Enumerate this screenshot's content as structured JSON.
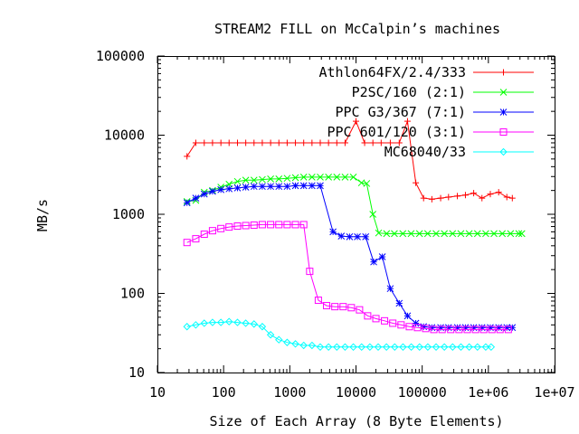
{
  "chart_data": {
    "type": "line",
    "title": "STREAM2 FILL on McCalpin’s machines",
    "xlabel": "Size of Each Array (8 Byte Elements)",
    "ylabel": "MB/s",
    "xscale": "log",
    "yscale": "log",
    "xlim": [
      10,
      10000000
    ],
    "ylim": [
      10,
      100000
    ],
    "xticks": [
      {
        "value": 10,
        "label": "10"
      },
      {
        "value": 100,
        "label": "100"
      },
      {
        "value": 1000,
        "label": "1000"
      },
      {
        "value": 10000,
        "label": "10000"
      },
      {
        "value": 100000,
        "label": "100000"
      },
      {
        "value": 1000000,
        "label": "1e+06"
      },
      {
        "value": 10000000,
        "label": "1e+07"
      }
    ],
    "yticks": [
      {
        "value": 10,
        "label": "10"
      },
      {
        "value": 100,
        "label": "100"
      },
      {
        "value": 1000,
        "label": "1000"
      },
      {
        "value": 10000,
        "label": "10000"
      },
      {
        "value": 100000,
        "label": "100000"
      }
    ],
    "grid": false,
    "legend_position": "top-right",
    "series": [
      {
        "name": "Athlon64FX/2.4/333",
        "color": "#ff0000",
        "marker": "plus",
        "points": [
          [
            28,
            5400
          ],
          [
            38,
            8000
          ],
          [
            51,
            8000
          ],
          [
            68,
            8000
          ],
          [
            91,
            8000
          ],
          [
            121,
            8000
          ],
          [
            162,
            8000
          ],
          [
            216,
            8000
          ],
          [
            288,
            8000
          ],
          [
            384,
            8000
          ],
          [
            513,
            8000
          ],
          [
            684,
            8000
          ],
          [
            912,
            8000
          ],
          [
            1216,
            8000
          ],
          [
            1622,
            8000
          ],
          [
            2163,
            8000
          ],
          [
            2885,
            8000
          ],
          [
            3847,
            8000
          ],
          [
            5130,
            8000
          ],
          [
            6840,
            8000
          ],
          [
            10000,
            15000
          ],
          [
            13500,
            8000
          ],
          [
            18000,
            8000
          ],
          [
            24000,
            8000
          ],
          [
            33000,
            8000
          ],
          [
            45000,
            8000
          ],
          [
            60000,
            15000
          ],
          [
            80000,
            2500
          ],
          [
            105000,
            1600
          ],
          [
            140000,
            1550
          ],
          [
            190000,
            1600
          ],
          [
            250000,
            1650
          ],
          [
            340000,
            1700
          ],
          [
            450000,
            1750
          ],
          [
            600000,
            1850
          ],
          [
            800000,
            1600
          ],
          [
            1070000,
            1800
          ],
          [
            1430000,
            1900
          ],
          [
            1900000,
            1650
          ],
          [
            2300000,
            1600
          ]
        ]
      },
      {
        "name": "P2SC/160 (2:1)",
        "color": "#00ff00",
        "marker": "cross",
        "points": [
          [
            28,
            1450
          ],
          [
            38,
            1500
          ],
          [
            51,
            1900
          ],
          [
            68,
            2000
          ],
          [
            91,
            2200
          ],
          [
            121,
            2400
          ],
          [
            162,
            2600
          ],
          [
            216,
            2700
          ],
          [
            288,
            2700
          ],
          [
            384,
            2750
          ],
          [
            513,
            2800
          ],
          [
            684,
            2800
          ],
          [
            912,
            2850
          ],
          [
            1216,
            2900
          ],
          [
            1622,
            2950
          ],
          [
            2163,
            2950
          ],
          [
            2885,
            2950
          ],
          [
            3847,
            2950
          ],
          [
            5130,
            2950
          ],
          [
            6840,
            2950
          ],
          [
            9120,
            2950
          ],
          [
            12100,
            2500
          ],
          [
            14500,
            2450
          ],
          [
            18000,
            1000
          ],
          [
            22000,
            580
          ],
          [
            29000,
            570
          ],
          [
            38000,
            570
          ],
          [
            51000,
            570
          ],
          [
            68000,
            570
          ],
          [
            91000,
            570
          ],
          [
            121000,
            570
          ],
          [
            162000,
            570
          ],
          [
            216000,
            570
          ],
          [
            288000,
            570
          ],
          [
            384000,
            570
          ],
          [
            513000,
            570
          ],
          [
            684000,
            570
          ],
          [
            912000,
            570
          ],
          [
            1216000,
            570
          ],
          [
            1622000,
            570
          ],
          [
            2163000,
            570
          ],
          [
            2885000,
            570
          ],
          [
            3200000,
            570
          ]
        ]
      },
      {
        "name": "PPC G3/367 (7:1)",
        "color": "#0000ff",
        "marker": "asterisk",
        "points": [
          [
            28,
            1400
          ],
          [
            38,
            1600
          ],
          [
            51,
            1800
          ],
          [
            68,
            1950
          ],
          [
            91,
            2050
          ],
          [
            121,
            2100
          ],
          [
            162,
            2150
          ],
          [
            216,
            2200
          ],
          [
            288,
            2250
          ],
          [
            384,
            2250
          ],
          [
            513,
            2250
          ],
          [
            684,
            2250
          ],
          [
            912,
            2250
          ],
          [
            1216,
            2300
          ],
          [
            1622,
            2300
          ],
          [
            2163,
            2300
          ],
          [
            2885,
            2300
          ],
          [
            4500,
            600
          ],
          [
            6000,
            530
          ],
          [
            8000,
            520
          ],
          [
            10500,
            520
          ],
          [
            14000,
            520
          ],
          [
            18500,
            250
          ],
          [
            25000,
            290
          ],
          [
            33000,
            115
          ],
          [
            45000,
            75
          ],
          [
            60000,
            52
          ],
          [
            80000,
            42
          ],
          [
            105000,
            38
          ],
          [
            140000,
            37
          ],
          [
            190000,
            37
          ],
          [
            250000,
            37
          ],
          [
            340000,
            37
          ],
          [
            450000,
            37
          ],
          [
            600000,
            37
          ],
          [
            800000,
            37
          ],
          [
            1070000,
            37
          ],
          [
            1430000,
            37
          ],
          [
            1900000,
            37
          ],
          [
            2300000,
            37
          ]
        ]
      },
      {
        "name": "PPC 601/120 (3:1)",
        "color": "#ff00ff",
        "marker": "square",
        "points": [
          [
            28,
            440
          ],
          [
            38,
            490
          ],
          [
            51,
            560
          ],
          [
            68,
            620
          ],
          [
            91,
            660
          ],
          [
            121,
            690
          ],
          [
            162,
            710
          ],
          [
            216,
            720
          ],
          [
            288,
            730
          ],
          [
            384,
            740
          ],
          [
            513,
            740
          ],
          [
            684,
            740
          ],
          [
            912,
            740
          ],
          [
            1216,
            740
          ],
          [
            1622,
            740
          ],
          [
            2000,
            190
          ],
          [
            2700,
            82
          ],
          [
            3600,
            70
          ],
          [
            4800,
            68
          ],
          [
            6400,
            68
          ],
          [
            8500,
            66
          ],
          [
            11300,
            62
          ],
          [
            15000,
            52
          ],
          [
            20000,
            48
          ],
          [
            27000,
            45
          ],
          [
            36000,
            42
          ],
          [
            48000,
            40
          ],
          [
            64000,
            38
          ],
          [
            85000,
            37
          ],
          [
            113000,
            36
          ],
          [
            150000,
            35
          ],
          [
            200000,
            35
          ],
          [
            270000,
            35
          ],
          [
            360000,
            35
          ],
          [
            480000,
            35
          ],
          [
            640000,
            35
          ],
          [
            850000,
            35
          ],
          [
            1130000,
            35
          ],
          [
            1500000,
            35
          ],
          [
            2000000,
            35
          ]
        ]
      },
      {
        "name": "MC68040/33",
        "color": "#00ffff",
        "marker": "diamond",
        "points": [
          [
            28,
            38
          ],
          [
            38,
            40
          ],
          [
            51,
            42
          ],
          [
            68,
            43
          ],
          [
            91,
            43
          ],
          [
            121,
            44
          ],
          [
            162,
            43
          ],
          [
            216,
            42
          ],
          [
            288,
            41
          ],
          [
            384,
            38
          ],
          [
            513,
            30
          ],
          [
            684,
            26
          ],
          [
            912,
            24
          ],
          [
            1216,
            23
          ],
          [
            1622,
            22
          ],
          [
            2163,
            22
          ],
          [
            2885,
            21
          ],
          [
            3847,
            21
          ],
          [
            5130,
            21
          ],
          [
            6840,
            21
          ],
          [
            9120,
            21
          ],
          [
            12160,
            21
          ],
          [
            16220,
            21
          ],
          [
            21630,
            21
          ],
          [
            28850,
            21
          ],
          [
            38470,
            21
          ],
          [
            51300,
            21
          ],
          [
            68400,
            21
          ],
          [
            91200,
            21
          ],
          [
            121600,
            21
          ],
          [
            162200,
            21
          ],
          [
            216300,
            21
          ],
          [
            288500,
            21
          ],
          [
            384700,
            21
          ],
          [
            513000,
            21
          ],
          [
            684000,
            21
          ],
          [
            912000,
            21
          ],
          [
            1100000,
            21
          ]
        ]
      }
    ]
  }
}
